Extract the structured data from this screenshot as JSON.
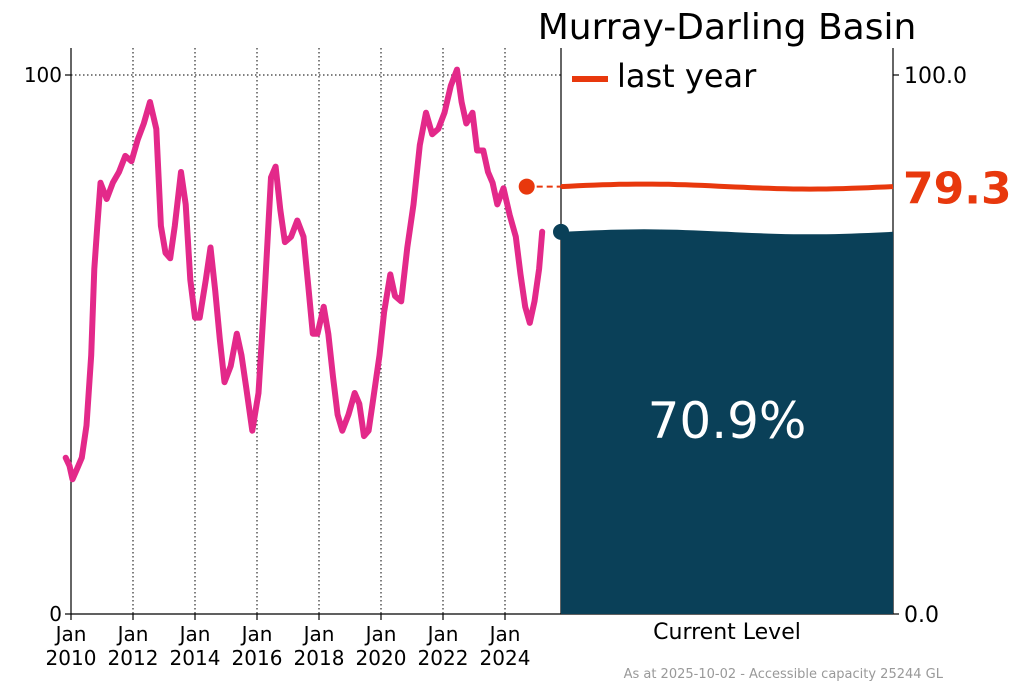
{
  "title": "Murray-Darling Basin",
  "legend": {
    "label": "last year"
  },
  "current": {
    "label": "Current Level",
    "value": 70.9,
    "value_text": "70.9%"
  },
  "last_year": {
    "value": 79.3,
    "value_text": "79.3"
  },
  "footer": "As at 2025-10-02 - Accessible capacity 25244 GL",
  "colors": {
    "history_line": "#e3298a",
    "last_year": "#e8380d",
    "level_fill": "#0a4058",
    "grid": "#000000"
  },
  "left_axis": {
    "ticks": [
      {
        "value": 0,
        "label": "0"
      },
      {
        "value": 100,
        "label": "100"
      }
    ]
  },
  "right_axis": {
    "ticks": [
      {
        "value": 0,
        "label": "0.0"
      },
      {
        "value": 100,
        "label": "100.0"
      }
    ]
  },
  "x_ticks": [
    {
      "year": 2010,
      "line1": "Jan",
      "line2": "2010"
    },
    {
      "year": 2012,
      "line1": "Jan",
      "line2": "2012"
    },
    {
      "year": 2014,
      "line1": "Jan",
      "line2": "2014"
    },
    {
      "year": 2016,
      "line1": "Jan",
      "line2": "2016"
    },
    {
      "year": 2018,
      "line1": "Jan",
      "line2": "2018"
    },
    {
      "year": 2020,
      "line1": "Jan",
      "line2": "2020"
    },
    {
      "year": 2022,
      "line1": "Jan",
      "line2": "2022"
    },
    {
      "year": 2024,
      "line1": "Jan",
      "line2": "2024"
    }
  ],
  "chart_data": {
    "type": "line",
    "title": "Murray-Darling Basin",
    "ylabel": "",
    "ylim": [
      0,
      100
    ],
    "xlim": [
      2010,
      2025.75
    ],
    "grid": "vertical dotted at each tick, horizontal dotted at 100",
    "series": [
      {
        "points": [
          [
            2009.83,
            29
          ],
          [
            2009.95,
            27.5
          ],
          [
            2010.05,
            25
          ],
          [
            2010.2,
            27
          ],
          [
            2010.35,
            29
          ],
          [
            2010.5,
            35
          ],
          [
            2010.65,
            48
          ],
          [
            2010.75,
            64
          ],
          [
            2010.85,
            72
          ],
          [
            2010.95,
            80
          ],
          [
            2011.15,
            77
          ],
          [
            2011.35,
            80
          ],
          [
            2011.55,
            82
          ],
          [
            2011.75,
            85
          ],
          [
            2011.95,
            84
          ],
          [
            2012.15,
            88
          ],
          [
            2012.35,
            91
          ],
          [
            2012.55,
            95
          ],
          [
            2012.75,
            90
          ],
          [
            2012.9,
            72
          ],
          [
            2013.05,
            67
          ],
          [
            2013.2,
            66
          ],
          [
            2013.35,
            72
          ],
          [
            2013.55,
            82
          ],
          [
            2013.7,
            76
          ],
          [
            2013.85,
            62
          ],
          [
            2014.0,
            55
          ],
          [
            2014.15,
            55
          ],
          [
            2014.35,
            62
          ],
          [
            2014.5,
            68
          ],
          [
            2014.65,
            60
          ],
          [
            2014.8,
            51
          ],
          [
            2014.95,
            43
          ],
          [
            2015.15,
            46
          ],
          [
            2015.35,
            52
          ],
          [
            2015.5,
            48
          ],
          [
            2015.65,
            42
          ],
          [
            2015.85,
            34
          ],
          [
            2016.05,
            41
          ],
          [
            2016.25,
            60
          ],
          [
            2016.45,
            81
          ],
          [
            2016.6,
            83
          ],
          [
            2016.75,
            75
          ],
          [
            2016.9,
            69
          ],
          [
            2017.1,
            70
          ],
          [
            2017.3,
            73
          ],
          [
            2017.5,
            70
          ],
          [
            2017.65,
            61
          ],
          [
            2017.8,
            52
          ],
          [
            2017.95,
            52
          ],
          [
            2018.15,
            57
          ],
          [
            2018.3,
            52
          ],
          [
            2018.45,
            44
          ],
          [
            2018.6,
            37
          ],
          [
            2018.75,
            34
          ],
          [
            2018.95,
            37
          ],
          [
            2019.15,
            41
          ],
          [
            2019.3,
            39
          ],
          [
            2019.45,
            33
          ],
          [
            2019.6,
            34
          ],
          [
            2019.75,
            40
          ],
          [
            2019.95,
            48
          ],
          [
            2020.1,
            56
          ],
          [
            2020.3,
            63
          ],
          [
            2020.45,
            59
          ],
          [
            2020.65,
            58
          ],
          [
            2020.85,
            68
          ],
          [
            2021.05,
            76
          ],
          [
            2021.25,
            87
          ],
          [
            2021.45,
            93
          ],
          [
            2021.65,
            89
          ],
          [
            2021.85,
            90
          ],
          [
            2022.05,
            93
          ],
          [
            2022.25,
            98
          ],
          [
            2022.45,
            101
          ],
          [
            2022.6,
            95
          ],
          [
            2022.75,
            91
          ],
          [
            2022.95,
            93
          ],
          [
            2023.1,
            86
          ],
          [
            2023.3,
            86
          ],
          [
            2023.45,
            82
          ],
          [
            2023.6,
            80
          ],
          [
            2023.75,
            76
          ],
          [
            2023.95,
            79
          ],
          [
            2024.15,
            74
          ],
          [
            2024.35,
            70
          ],
          [
            2024.5,
            63
          ],
          [
            2024.65,
            57
          ],
          [
            2024.8,
            54
          ],
          [
            2024.95,
            58
          ],
          [
            2025.1,
            64
          ],
          [
            2025.2,
            70.9
          ]
        ]
      }
    ],
    "markers": [
      {
        "label": "last year",
        "x": 2024.7,
        "y": 79.3
      },
      {
        "label": "Current Level",
        "x": 2025.2,
        "y": 70.9
      }
    ],
    "bar": {
      "label": "Current Level",
      "value": 70.9,
      "reference": 79.3
    }
  }
}
